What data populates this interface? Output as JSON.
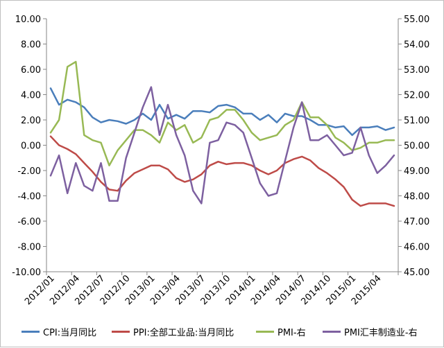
{
  "chart_data": {
    "type": "line",
    "x": [
      "2012/01",
      "2012/02",
      "2012/03",
      "2012/04",
      "2012/05",
      "2012/06",
      "2012/07",
      "2012/08",
      "2012/09",
      "2012/10",
      "2012/11",
      "2012/12",
      "2013/01",
      "2013/02",
      "2013/03",
      "2013/04",
      "2013/05",
      "2013/06",
      "2013/07",
      "2013/08",
      "2013/09",
      "2013/10",
      "2013/11",
      "2013/12",
      "2014/01",
      "2014/02",
      "2014/03",
      "2014/04",
      "2014/05",
      "2014/06",
      "2014/07",
      "2014/08",
      "2014/09",
      "2014/10",
      "2014/11",
      "2014/12",
      "2015/01",
      "2015/02",
      "2015/03",
      "2015/04",
      "2015/05",
      "2015/06"
    ],
    "x_tick_labels": [
      "2012/01",
      "2012/04",
      "2012/07",
      "2012/10",
      "2013/01",
      "2013/04",
      "2013/07",
      "2013/10",
      "2014/01",
      "2014/04",
      "2014/07",
      "2014/10",
      "2015/01",
      "2015/04"
    ],
    "y_left": {
      "ylim": [
        -10,
        10
      ],
      "tick_labels": [
        "10.00",
        "8.00",
        "6.00",
        "4.00",
        "2.00",
        "0.00",
        "-2.00",
        "-4.00",
        "-6.00",
        "-8.00",
        "-10.00"
      ]
    },
    "y_right": {
      "ylim": [
        45,
        55
      ],
      "tick_labels": [
        "55.00",
        "54.00",
        "53.00",
        "52.00",
        "51.00",
        "50.00",
        "49.00",
        "48.00",
        "47.00",
        "46.00",
        "45.00"
      ]
    },
    "grid": false,
    "legend_position": "bottom",
    "series": [
      {
        "name": "CPI:当月同比",
        "axis": "left",
        "color": "#4a7ebb",
        "values": [
          4.5,
          3.2,
          3.6,
          3.4,
          3.0,
          2.2,
          1.8,
          2.0,
          1.9,
          1.7,
          2.0,
          2.5,
          2.0,
          3.2,
          2.1,
          2.4,
          2.1,
          2.7,
          2.7,
          2.6,
          3.1,
          3.2,
          3.0,
          2.5,
          2.5,
          2.0,
          2.4,
          1.8,
          2.5,
          2.3,
          2.3,
          2.0,
          1.6,
          1.6,
          1.4,
          1.5,
          0.8,
          1.4,
          1.4,
          1.5,
          1.2,
          1.4
        ]
      },
      {
        "name": "PPI:全部工业品:当月同比",
        "axis": "left",
        "color": "#be4b48",
        "values": [
          0.7,
          0.0,
          -0.3,
          -0.7,
          -1.4,
          -2.1,
          -2.9,
          -3.5,
          -3.6,
          -2.8,
          -2.2,
          -1.9,
          -1.6,
          -1.6,
          -1.9,
          -2.6,
          -2.9,
          -2.7,
          -2.3,
          -1.6,
          -1.3,
          -1.5,
          -1.4,
          -1.4,
          -1.6,
          -2.0,
          -2.3,
          -2.0,
          -1.4,
          -1.1,
          -0.9,
          -1.2,
          -1.8,
          -2.2,
          -2.7,
          -3.3,
          -4.3,
          -4.8,
          -4.6,
          -4.6,
          -4.6,
          -4.8
        ]
      },
      {
        "name": "PMI-右",
        "axis": "right",
        "color": "#98b954",
        "values": [
          50.5,
          51.0,
          53.1,
          53.3,
          50.4,
          50.2,
          50.1,
          49.2,
          49.8,
          50.2,
          50.6,
          50.6,
          50.4,
          50.1,
          50.9,
          50.6,
          50.8,
          50.1,
          50.3,
          51.0,
          51.1,
          51.4,
          51.4,
          51.0,
          50.5,
          50.2,
          50.3,
          50.4,
          50.8,
          51.0,
          51.7,
          51.1,
          51.1,
          50.8,
          50.3,
          50.1,
          49.8,
          49.9,
          50.1,
          50.1,
          50.2,
          50.2
        ]
      },
      {
        "name": "PMI汇丰制造业-右",
        "axis": "right",
        "color": "#7d60a0",
        "values": [
          48.8,
          49.6,
          48.1,
          49.3,
          48.4,
          48.2,
          49.3,
          47.8,
          47.8,
          49.5,
          50.5,
          51.5,
          52.3,
          50.4,
          51.6,
          50.4,
          49.6,
          48.2,
          47.7,
          50.1,
          50.2,
          50.9,
          50.8,
          50.5,
          49.5,
          48.5,
          48.0,
          48.1,
          49.4,
          50.7,
          51.7,
          50.2,
          50.2,
          50.4,
          50.0,
          49.6,
          49.7,
          50.7,
          49.6,
          48.9,
          49.2,
          49.6
        ]
      }
    ]
  }
}
